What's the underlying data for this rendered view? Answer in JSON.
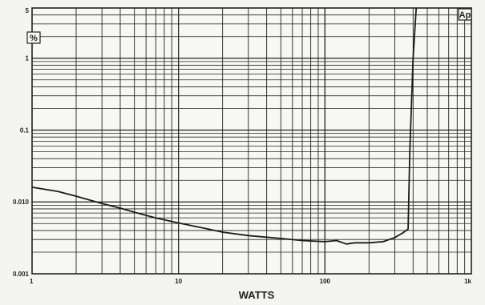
{
  "chart_data": {
    "type": "line",
    "x_scale": "log",
    "y_scale": "log",
    "xlabel": "WATTS",
    "ylabel": "%",
    "badge": "Ap",
    "xlim": [
      1,
      1000
    ],
    "ylim": [
      0.001,
      5
    ],
    "grid": true,
    "x_ticks": [
      {
        "value": 1,
        "label": "1"
      },
      {
        "value": 10,
        "label": "10"
      },
      {
        "value": 100,
        "label": "100"
      },
      {
        "value": 1000,
        "label": "1k"
      }
    ],
    "y_ticks": [
      {
        "value": 5,
        "label": "5"
      },
      {
        "value": 1,
        "label": "1"
      },
      {
        "value": 0.1,
        "label": "0.1"
      },
      {
        "value": 0.01,
        "label": "0.010"
      },
      {
        "value": 0.001,
        "label": "0.001"
      }
    ],
    "series": [
      {
        "x": [
          1,
          1.5,
          2,
          3,
          4,
          5,
          7,
          10,
          15,
          20,
          30,
          50,
          70,
          100,
          120,
          140,
          160,
          200,
          250,
          300,
          340,
          370,
          380,
          400,
          420
        ],
        "y": [
          0.016,
          0.014,
          0.012,
          0.0095,
          0.0082,
          0.0072,
          0.006,
          0.0051,
          0.0043,
          0.0038,
          0.0034,
          0.0031,
          0.0029,
          0.0028,
          0.0029,
          0.0026,
          0.0027,
          0.0027,
          0.0028,
          0.0032,
          0.0037,
          0.0042,
          0.05,
          1.0,
          5
        ]
      }
    ]
  }
}
